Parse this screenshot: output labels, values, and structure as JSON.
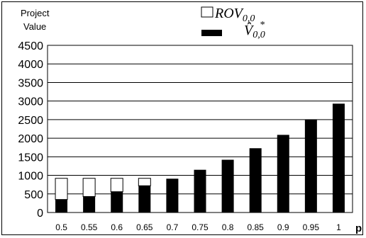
{
  "chart_data": {
    "type": "bar",
    "stacked": true,
    "ylabel": "Project\nValue",
    "xlabel": "p",
    "categories": [
      "0.5",
      "0.55",
      "0.6",
      "0.65",
      "0.7",
      "0.75",
      "0.8",
      "0.85",
      "0.9",
      "0.95",
      "1"
    ],
    "ylim": [
      0,
      4500
    ],
    "yticks": [
      0,
      500,
      1000,
      1500,
      2000,
      2500,
      3000,
      3500,
      4000,
      4500
    ],
    "grid": true,
    "legend_position": "top-right",
    "series": [
      {
        "name": "V̂*0,0",
        "legend_main": "V̂",
        "legend_sub": "0,0",
        "legend_sup": "*",
        "color": "#000000",
        "values": [
          350,
          430,
          560,
          720,
          910,
          1150,
          1420,
          1730,
          2090,
          2500,
          2930
        ]
      },
      {
        "name": "ROV0,0",
        "legend_main": "ROV",
        "legend_sub": "0,0",
        "color": "#ffffff",
        "values": [
          570,
          490,
          360,
          200,
          0,
          0,
          0,
          0,
          0,
          0,
          0
        ]
      }
    ]
  }
}
